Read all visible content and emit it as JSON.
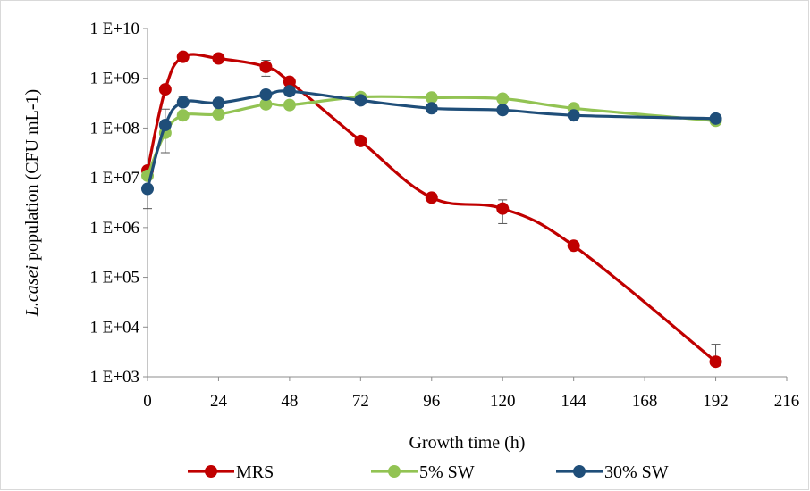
{
  "chart_data": {
    "type": "line",
    "title": "",
    "xlabel": "Growth time (h)",
    "ylabel": {
      "italic": "L.casei",
      "rest": " population (CFU mL-1)"
    },
    "xlim": [
      0,
      216
    ],
    "ylim_log10": [
      3,
      10
    ],
    "y_scale": "log",
    "x_ticks": [
      "0",
      "24",
      "48",
      "72",
      "96",
      "120",
      "144",
      "168",
      "192",
      "216"
    ],
    "y_ticks": [
      "1 E+03",
      "1 E+04",
      "1 E+05",
      "1 E+06",
      "1 E+07",
      "1 E+08",
      "1 E+09",
      "1 E+10"
    ],
    "grid": false,
    "legend_position": "bottom",
    "series": [
      {
        "name": "MRS",
        "color": "#c00000",
        "x": [
          0,
          6,
          12,
          24,
          40,
          48,
          72,
          96,
          120,
          144,
          192
        ],
        "y": [
          14000000.0,
          600000000.0,
          2700000000.0,
          2500000000.0,
          1700000000.0,
          850000000.0,
          55000000.0,
          4000000.0,
          2400000.0,
          430000.0,
          2000.0
        ],
        "err_hi": [
          null,
          null,
          null,
          null,
          2300000000.0,
          null,
          null,
          null,
          3600000.0,
          null,
          4500.0
        ],
        "err_lo": [
          null,
          null,
          null,
          null,
          1100000000.0,
          null,
          null,
          null,
          1200000.0,
          null,
          null
        ]
      },
      {
        "name": "5% SW",
        "color": "#92c353",
        "x": [
          0,
          6,
          12,
          24,
          40,
          48,
          72,
          96,
          120,
          144,
          192
        ],
        "y": [
          11000000.0,
          80000000.0,
          180000000.0,
          190000000.0,
          300000000.0,
          290000000.0,
          420000000.0,
          410000000.0,
          390000000.0,
          250000000.0,
          140000000.0
        ],
        "err_hi": [
          null,
          null,
          null,
          null,
          null,
          null,
          null,
          null,
          null,
          null,
          null
        ],
        "err_lo": [
          null,
          32000000.0,
          null,
          null,
          null,
          null,
          null,
          null,
          null,
          null,
          null
        ]
      },
      {
        "name": "30% SW",
        "color": "#1f4e79",
        "x": [
          0,
          6,
          12,
          24,
          40,
          48,
          72,
          96,
          120,
          144,
          192
        ],
        "y": [
          6000000.0,
          115000000.0,
          330000000.0,
          320000000.0,
          470000000.0,
          550000000.0,
          360000000.0,
          250000000.0,
          230000000.0,
          180000000.0,
          155000000.0
        ],
        "err_hi": [
          null,
          240000000.0,
          420000000.0,
          null,
          null,
          null,
          null,
          null,
          null,
          null,
          null
        ],
        "err_lo": [
          2400000.0,
          null,
          null,
          null,
          null,
          null,
          null,
          null,
          null,
          null,
          null
        ]
      }
    ]
  }
}
